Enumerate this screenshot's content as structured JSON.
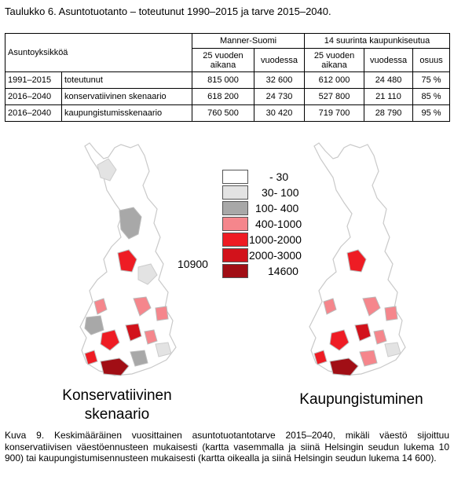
{
  "title": "Taulukko 6. Asuntotuotanto – toteutunut 1990–2015 ja tarve 2015–2040.",
  "table": {
    "col_unit": "Asuntoyksikköä",
    "group_mainland": "Manner-Suomi",
    "group_cities": "14 suurinta kaupunkiseutua",
    "sub_25y": "25 vuoden aikana",
    "sub_year": "vuodessa",
    "sub_share": "osuus",
    "rows": [
      {
        "period": "1991–2015",
        "label": "toteutunut",
        "m25": "815 000",
        "myear": "32 600",
        "c25": "612 000",
        "cyear": "24 480",
        "share": "75 %"
      },
      {
        "period": "2016–2040",
        "label": "konservatiivinen skenaario",
        "m25": "618 200",
        "myear": "24 730",
        "c25": "527 800",
        "cyear": "21 110",
        "share": "85 %"
      },
      {
        "period": "2016–2040",
        "label": "kaupungistumisskenaario",
        "m25": "760 500",
        "myear": "30 420",
        "c25": "719 700",
        "cyear": "28 790",
        "share": "95 %"
      }
    ]
  },
  "legend": [
    {
      "label": "-   30",
      "color": "#ffffff"
    },
    {
      "label": "30-  100",
      "color": "#e3e3e3"
    },
    {
      "label": "100-  400",
      "color": "#a8a8a8"
    },
    {
      "label": "400-1000",
      "color": "#f5868c"
    },
    {
      "label": "1000-2000",
      "color": "#ee1c24"
    },
    {
      "label": "2000-3000",
      "color": "#d2121b"
    },
    {
      "label": "14600",
      "color": "#a10e15"
    }
  ],
  "helsinki_value_left": "10900",
  "map_left_label": "Konservatiivinen skenaario",
  "map_left_line1": "Konservatiivinen",
  "map_left_line2": "skenaario",
  "map_right_label": "Kaupungistuminen",
  "caption": "Kuva 9. Keskimääräinen vuosittainen asuntotuotantotarve 2015–2040, mikäli väestö sijoittuu konservatiivisen väestöennusteen mukaisesti (kartta vasemmalla ja siinä Helsingin seudun lukema 10 900) tai kaupungistumisennusteen mukaisesti (kartta oikealla ja siinä Helsingin seudun lukema 14 600)."
}
